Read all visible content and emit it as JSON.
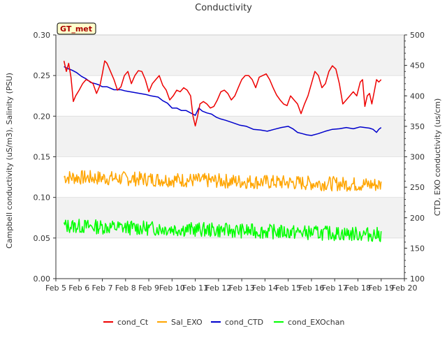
{
  "chart_data": {
    "type": "line",
    "title": "Conductivity",
    "badge": "GT_met",
    "ylabel_left": "Campbell conductivity (uS/m3), Salinity (PSU)",
    "ylabel_right": "CTD, EXO conductivity (us/cm)",
    "xlim": [
      0,
      15
    ],
    "ylim_left": [
      0,
      0.3
    ],
    "ylim_right": [
      100,
      500
    ],
    "x_ticks": [
      {
        "v": 0,
        "label": "Feb 5"
      },
      {
        "v": 1,
        "label": "Feb 6"
      },
      {
        "v": 2,
        "label": "Feb 7"
      },
      {
        "v": 3,
        "label": "Feb 8"
      },
      {
        "v": 4,
        "label": "Feb 9"
      },
      {
        "v": 5,
        "label": "Feb 10"
      },
      {
        "v": 6,
        "label": "Feb 11"
      },
      {
        "v": 7,
        "label": "Feb 12"
      },
      {
        "v": 8,
        "label": "Feb 13"
      },
      {
        "v": 9,
        "label": "Feb 14"
      },
      {
        "v": 10,
        "label": "Feb 15"
      },
      {
        "v": 11,
        "label": "Feb 16"
      },
      {
        "v": 12,
        "label": "Feb 17"
      },
      {
        "v": 13,
        "label": "Feb 18"
      },
      {
        "v": 14,
        "label": "Feb 19"
      },
      {
        "v": 15,
        "label": "Feb 20"
      }
    ],
    "yticks_left": [
      "0.00",
      "0.05",
      "0.10",
      "0.15",
      "0.20",
      "0.25",
      "0.30"
    ],
    "yticks_right": [
      "100",
      "150",
      "200",
      "250",
      "300",
      "350",
      "400",
      "450",
      "500"
    ],
    "grid": "alternating horizontal bands",
    "legend_position": "bottom-center",
    "series": [
      {
        "name": "cond_Ct",
        "color": "#ee0000",
        "axis": "left",
        "x": [
          0.35,
          0.45,
          0.55,
          0.65,
          0.75,
          0.85,
          1.0,
          1.15,
          1.3,
          1.45,
          1.6,
          1.75,
          1.9,
          2.0,
          2.1,
          2.2,
          2.35,
          2.5,
          2.65,
          2.8,
          2.95,
          3.1,
          3.25,
          3.4,
          3.55,
          3.7,
          3.85,
          4.0,
          4.15,
          4.3,
          4.45,
          4.6,
          4.75,
          4.9,
          5.05,
          5.2,
          5.35,
          5.5,
          5.65,
          5.8,
          5.9,
          6.0,
          6.1,
          6.2,
          6.35,
          6.5,
          6.65,
          6.8,
          6.95,
          7.1,
          7.25,
          7.4,
          7.55,
          7.7,
          7.85,
          8.0,
          8.15,
          8.3,
          8.45,
          8.6,
          8.75,
          8.9,
          9.05,
          9.2,
          9.35,
          9.5,
          9.65,
          9.8,
          9.95,
          10.1,
          10.25,
          10.4,
          10.55,
          10.7,
          10.85,
          11.0,
          11.15,
          11.3,
          11.45,
          11.6,
          11.75,
          11.9,
          12.05,
          12.2,
          12.35,
          12.5,
          12.65,
          12.8,
          12.95,
          13.1,
          13.2,
          13.3,
          13.4,
          13.5,
          13.6,
          13.7,
          13.8,
          13.9,
          14.0
        ],
        "y": [
          0.268,
          0.255,
          0.265,
          0.248,
          0.218,
          0.225,
          0.232,
          0.24,
          0.245,
          0.243,
          0.24,
          0.228,
          0.238,
          0.252,
          0.268,
          0.265,
          0.255,
          0.245,
          0.232,
          0.236,
          0.25,
          0.255,
          0.24,
          0.25,
          0.256,
          0.255,
          0.245,
          0.23,
          0.24,
          0.245,
          0.25,
          0.238,
          0.232,
          0.22,
          0.225,
          0.232,
          0.23,
          0.235,
          0.232,
          0.225,
          0.2,
          0.188,
          0.2,
          0.215,
          0.218,
          0.215,
          0.21,
          0.212,
          0.22,
          0.23,
          0.232,
          0.228,
          0.22,
          0.225,
          0.235,
          0.245,
          0.25,
          0.25,
          0.245,
          0.235,
          0.248,
          0.25,
          0.252,
          0.245,
          0.235,
          0.226,
          0.22,
          0.215,
          0.213,
          0.225,
          0.22,
          0.215,
          0.203,
          0.215,
          0.225,
          0.24,
          0.255,
          0.25,
          0.235,
          0.24,
          0.255,
          0.262,
          0.258,
          0.24,
          0.215,
          0.22,
          0.225,
          0.23,
          0.225,
          0.242,
          0.245,
          0.212,
          0.225,
          0.228,
          0.215,
          0.23,
          0.245,
          0.242,
          0.245
        ]
      },
      {
        "name": "Sal_EXO",
        "color": "#ffa500",
        "axis": "left",
        "baseline": 0.125,
        "trend": -0.0007,
        "amplitude": 0.009,
        "seed": 7,
        "n": 400,
        "x_start": 0.35,
        "x_end": 14.0
      },
      {
        "name": "cond_CTD",
        "color": "#0000cc",
        "axis": "right",
        "x": [
          0.35,
          0.5,
          0.7,
          0.9,
          1.1,
          1.3,
          1.5,
          1.7,
          1.85,
          2.0,
          2.2,
          2.5,
          2.8,
          3.0,
          3.3,
          3.6,
          3.9,
          4.1,
          4.4,
          4.6,
          4.8,
          5.0,
          5.2,
          5.4,
          5.6,
          5.8,
          5.9,
          6.0,
          6.15,
          6.3,
          6.5,
          6.7,
          6.9,
          7.1,
          7.3,
          7.6,
          7.9,
          8.2,
          8.5,
          8.8,
          9.1,
          9.4,
          9.7,
          10.0,
          10.2,
          10.4,
          10.6,
          10.8,
          11.0,
          11.3,
          11.6,
          11.9,
          12.2,
          12.5,
          12.8,
          13.1,
          13.3,
          13.5,
          13.65,
          13.8,
          13.9,
          14.0
        ],
        "y": [
          448,
          445,
          442,
          438,
          432,
          428,
          422,
          420,
          418,
          415,
          415,
          410,
          410,
          408,
          406,
          404,
          402,
          400,
          398,
          392,
          388,
          380,
          380,
          376,
          376,
          372,
          370,
          368,
          380,
          375,
          372,
          370,
          365,
          362,
          360,
          356,
          352,
          350,
          345,
          344,
          342,
          345,
          348,
          350,
          346,
          340,
          338,
          336,
          335,
          338,
          342,
          345,
          346,
          348,
          346,
          349,
          348,
          347,
          345,
          340,
          345,
          348
        ]
      },
      {
        "name": "cond_EXOchan",
        "color": "#00ff00",
        "axis": "left",
        "baseline": 0.065,
        "trend": -0.0008,
        "amplitude": 0.009,
        "seed": 13,
        "n": 400,
        "x_start": 0.35,
        "x_end": 14.0
      }
    ]
  }
}
